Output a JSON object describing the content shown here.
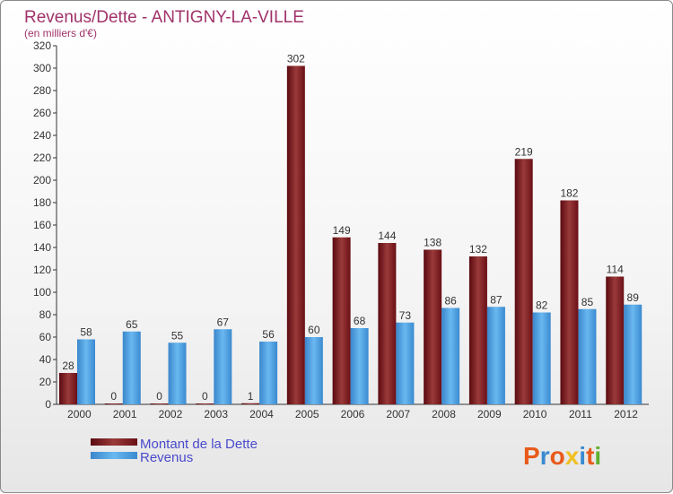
{
  "chart_data": {
    "type": "bar",
    "title": "Revenus/Dette - ANTIGNY-LA-VILLE",
    "subtitle": "(en milliers d'€)",
    "categories": [
      "2000",
      "2001",
      "2002",
      "2003",
      "2004",
      "2005",
      "2006",
      "2007",
      "2008",
      "2009",
      "2010",
      "2011",
      "2012"
    ],
    "series": [
      {
        "name": "Montant de la Dette",
        "color": "#7a1a1e",
        "values": [
          28,
          0,
          0,
          0,
          1,
          302,
          149,
          144,
          138,
          132,
          219,
          182,
          114
        ]
      },
      {
        "name": "Revenus",
        "color": "#4a9ee0",
        "values": [
          58,
          65,
          55,
          67,
          56,
          60,
          68,
          73,
          86,
          87,
          82,
          85,
          89
        ]
      }
    ],
    "ylim": [
      0,
      320
    ],
    "yticks": [
      0,
      20,
      40,
      60,
      80,
      100,
      120,
      140,
      160,
      180,
      200,
      220,
      240,
      260,
      280,
      300,
      320
    ],
    "grid": false,
    "legend_position": "bottom-left"
  },
  "logo": {
    "text": "Proxiti",
    "colors": [
      "#e85a1a",
      "#3a8ad0",
      "#e85a1a",
      "#f0c020",
      "#3a8ad0",
      "#e85a1a",
      "#60b030"
    ]
  }
}
